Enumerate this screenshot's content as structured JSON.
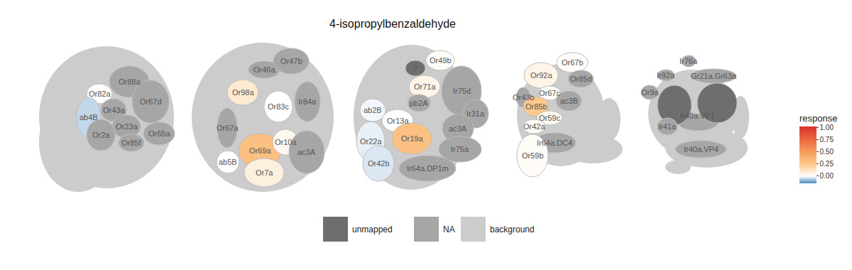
{
  "chart_data": {
    "type": "glomerulus_map",
    "title": "4-isopropylbenzaldehyde",
    "status_colors": [
      {
        "name": "unmapped",
        "color": "#6e6e6e"
      },
      {
        "name": "NA",
        "color": "#a6a6a6"
      },
      {
        "name": "background",
        "color": "#cccccc"
      }
    ],
    "colorbar": {
      "title": "response",
      "range": [
        -0.15,
        1.03
      ],
      "ticks": [
        {
          "value": 0,
          "label": "0.00"
        },
        {
          "value": 0.25,
          "label": "0.25"
        },
        {
          "value": 0.5,
          "label": "0.50"
        },
        {
          "value": 0.75,
          "label": "0.75"
        },
        {
          "value": 1,
          "label": "1.00"
        }
      ]
    },
    "panels": [
      {
        "glomeruli": [
          {
            "label": "Or88a",
            "status": "NA"
          },
          {
            "label": "Or82a",
            "value": 0.01
          },
          {
            "label": "Or43a",
            "status": "NA"
          },
          {
            "label": "Or67d",
            "status": "NA"
          },
          {
            "label": "ab4B",
            "value": -0.05
          },
          {
            "label": "Or23a",
            "status": "NA"
          },
          {
            "label": "Or2a",
            "status": "NA"
          },
          {
            "label": "Or85f",
            "status": "NA"
          },
          {
            "label": "Or65a",
            "status": "NA"
          }
        ]
      },
      {
        "glomeruli": [
          {
            "label": "Or46a",
            "status": "NA"
          },
          {
            "label": "Or47b",
            "status": "NA"
          },
          {
            "label": "Or98a",
            "value": 0.1
          },
          {
            "label": "Or83c",
            "value": 0.0
          },
          {
            "label": "Ir84a",
            "status": "NA"
          },
          {
            "label": "Or67a",
            "status": "NA"
          },
          {
            "label": "Or69a",
            "value": 0.3
          },
          {
            "label": "Or10a",
            "value": 0.03
          },
          {
            "label": "ac3A",
            "status": "NA"
          },
          {
            "label": "ab5B",
            "value": 0.0
          },
          {
            "label": "Or7a",
            "value": 0.07
          }
        ]
      },
      {
        "glomeruli": [
          {
            "label": "?",
            "status": "unmapped"
          },
          {
            "label": "Or49b",
            "value": 0.02
          },
          {
            "label": "Or71a",
            "value": 0.05
          },
          {
            "label": "Ir75d",
            "status": "NA"
          },
          {
            "label": "ab2B",
            "value": -0.01
          },
          {
            "label": "pb2A",
            "status": "NA"
          },
          {
            "label": "Or13a",
            "value": 0.0
          },
          {
            "label": "Ir31a",
            "status": "NA"
          },
          {
            "label": "ac3A",
            "status": "NA"
          },
          {
            "label": "Or22a",
            "value": -0.02
          },
          {
            "label": "Or19a",
            "value": 0.3
          },
          {
            "label": "Ir75a",
            "status": "NA"
          },
          {
            "label": "Or42b",
            "value": -0.03
          },
          {
            "label": "Ir64a.DP1m",
            "status": "NA"
          }
        ]
      },
      {
        "glomeruli": [
          {
            "label": "Or92a",
            "value": 0.05
          },
          {
            "label": "Or67b",
            "value": 0.02
          },
          {
            "label": "Or85d",
            "status": "NA"
          },
          {
            "label": "Or43b",
            "status": "NA"
          },
          {
            "label": "Or67c",
            "value": 0.02
          },
          {
            "label": "ac3B",
            "status": "NA"
          },
          {
            "label": "Or85b",
            "value": 0.25
          },
          {
            "label": "Or59c",
            "value": 0.03
          },
          {
            "label": "Or42a",
            "value": 0.02
          },
          {
            "label": "Ir64a.DC4",
            "status": "NA"
          },
          {
            "label": "Or59b",
            "value": 0.02
          }
        ]
      },
      {
        "glomeruli": [
          {
            "label": "Ir76a",
            "status": "NA"
          },
          {
            "label": "Ir92a",
            "status": "NA"
          },
          {
            "label": "Gr21a.Gr63a",
            "status": "NA"
          },
          {
            "label": "Or9a",
            "status": "NA"
          },
          {
            "label": "Ir40a.VP1",
            "status": "NA"
          },
          {
            "status": "unmapped"
          },
          {
            "status": "unmapped"
          },
          {
            "label": "Ir41a",
            "status": "NA"
          },
          {
            "label": "Ir40a.VP4",
            "status": "NA"
          }
        ]
      }
    ]
  }
}
